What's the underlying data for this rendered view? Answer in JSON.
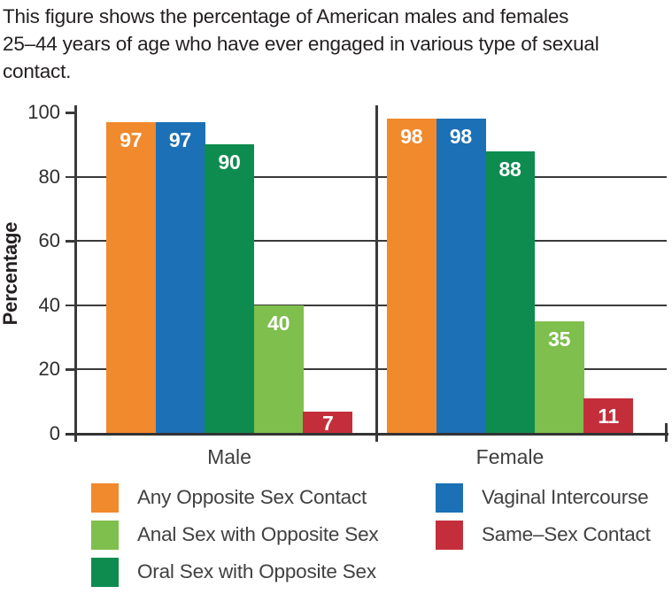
{
  "caption_lines": [
    "This figure shows the percentage of American males and females",
    "25–44 years of age who have ever engaged in various type of sexual",
    "contact."
  ],
  "colors": {
    "orange": "#F1892D",
    "blue": "#1C70B6",
    "dark_green": "#0E8C4F",
    "light_green": "#7FBF4D",
    "red": "#C42E3B",
    "axis": "#3A3A3A",
    "caption_text": "#231F20",
    "gray_text": "#414042"
  },
  "chart_data": {
    "type": "bar",
    "title": "Percentage of American males and females 25–44 who have ever engaged in various types of sexual contact",
    "categories": [
      "Male",
      "Female"
    ],
    "series": [
      {
        "name": "Any Opposite Sex Contact",
        "color_key": "orange",
        "values": [
          97,
          98
        ]
      },
      {
        "name": "Vaginal Intercourse",
        "color_key": "blue",
        "values": [
          97,
          98
        ]
      },
      {
        "name": "Oral Sex with Opposite Sex",
        "color_key": "dark_green",
        "values": [
          90,
          88
        ]
      },
      {
        "name": "Anal Sex with Opposite Sex",
        "color_key": "light_green",
        "values": [
          40,
          35
        ]
      },
      {
        "name": "Same–Sex Contact",
        "color_key": "red",
        "values": [
          7,
          11
        ]
      }
    ],
    "xlabel": "",
    "ylabel": "Percentage",
    "ylim": [
      0,
      100
    ],
    "yticks": [
      0,
      20,
      40,
      60,
      80,
      100
    ],
    "grid": "horizontal",
    "value_labels": "inside-top, white bold",
    "legend_position": "bottom"
  },
  "legend": {
    "columns": [
      [
        {
          "label": "Any Opposite Sex Contact",
          "color_key": "orange"
        },
        {
          "label": "Anal Sex with Opposite Sex",
          "color_key": "light_green"
        },
        {
          "label": "Oral Sex with Opposite Sex",
          "color_key": "dark_green"
        }
      ],
      [
        {
          "label": "Vaginal Intercourse",
          "color_key": "blue"
        },
        {
          "label": "Same–Sex Contact",
          "color_key": "red"
        }
      ]
    ]
  }
}
